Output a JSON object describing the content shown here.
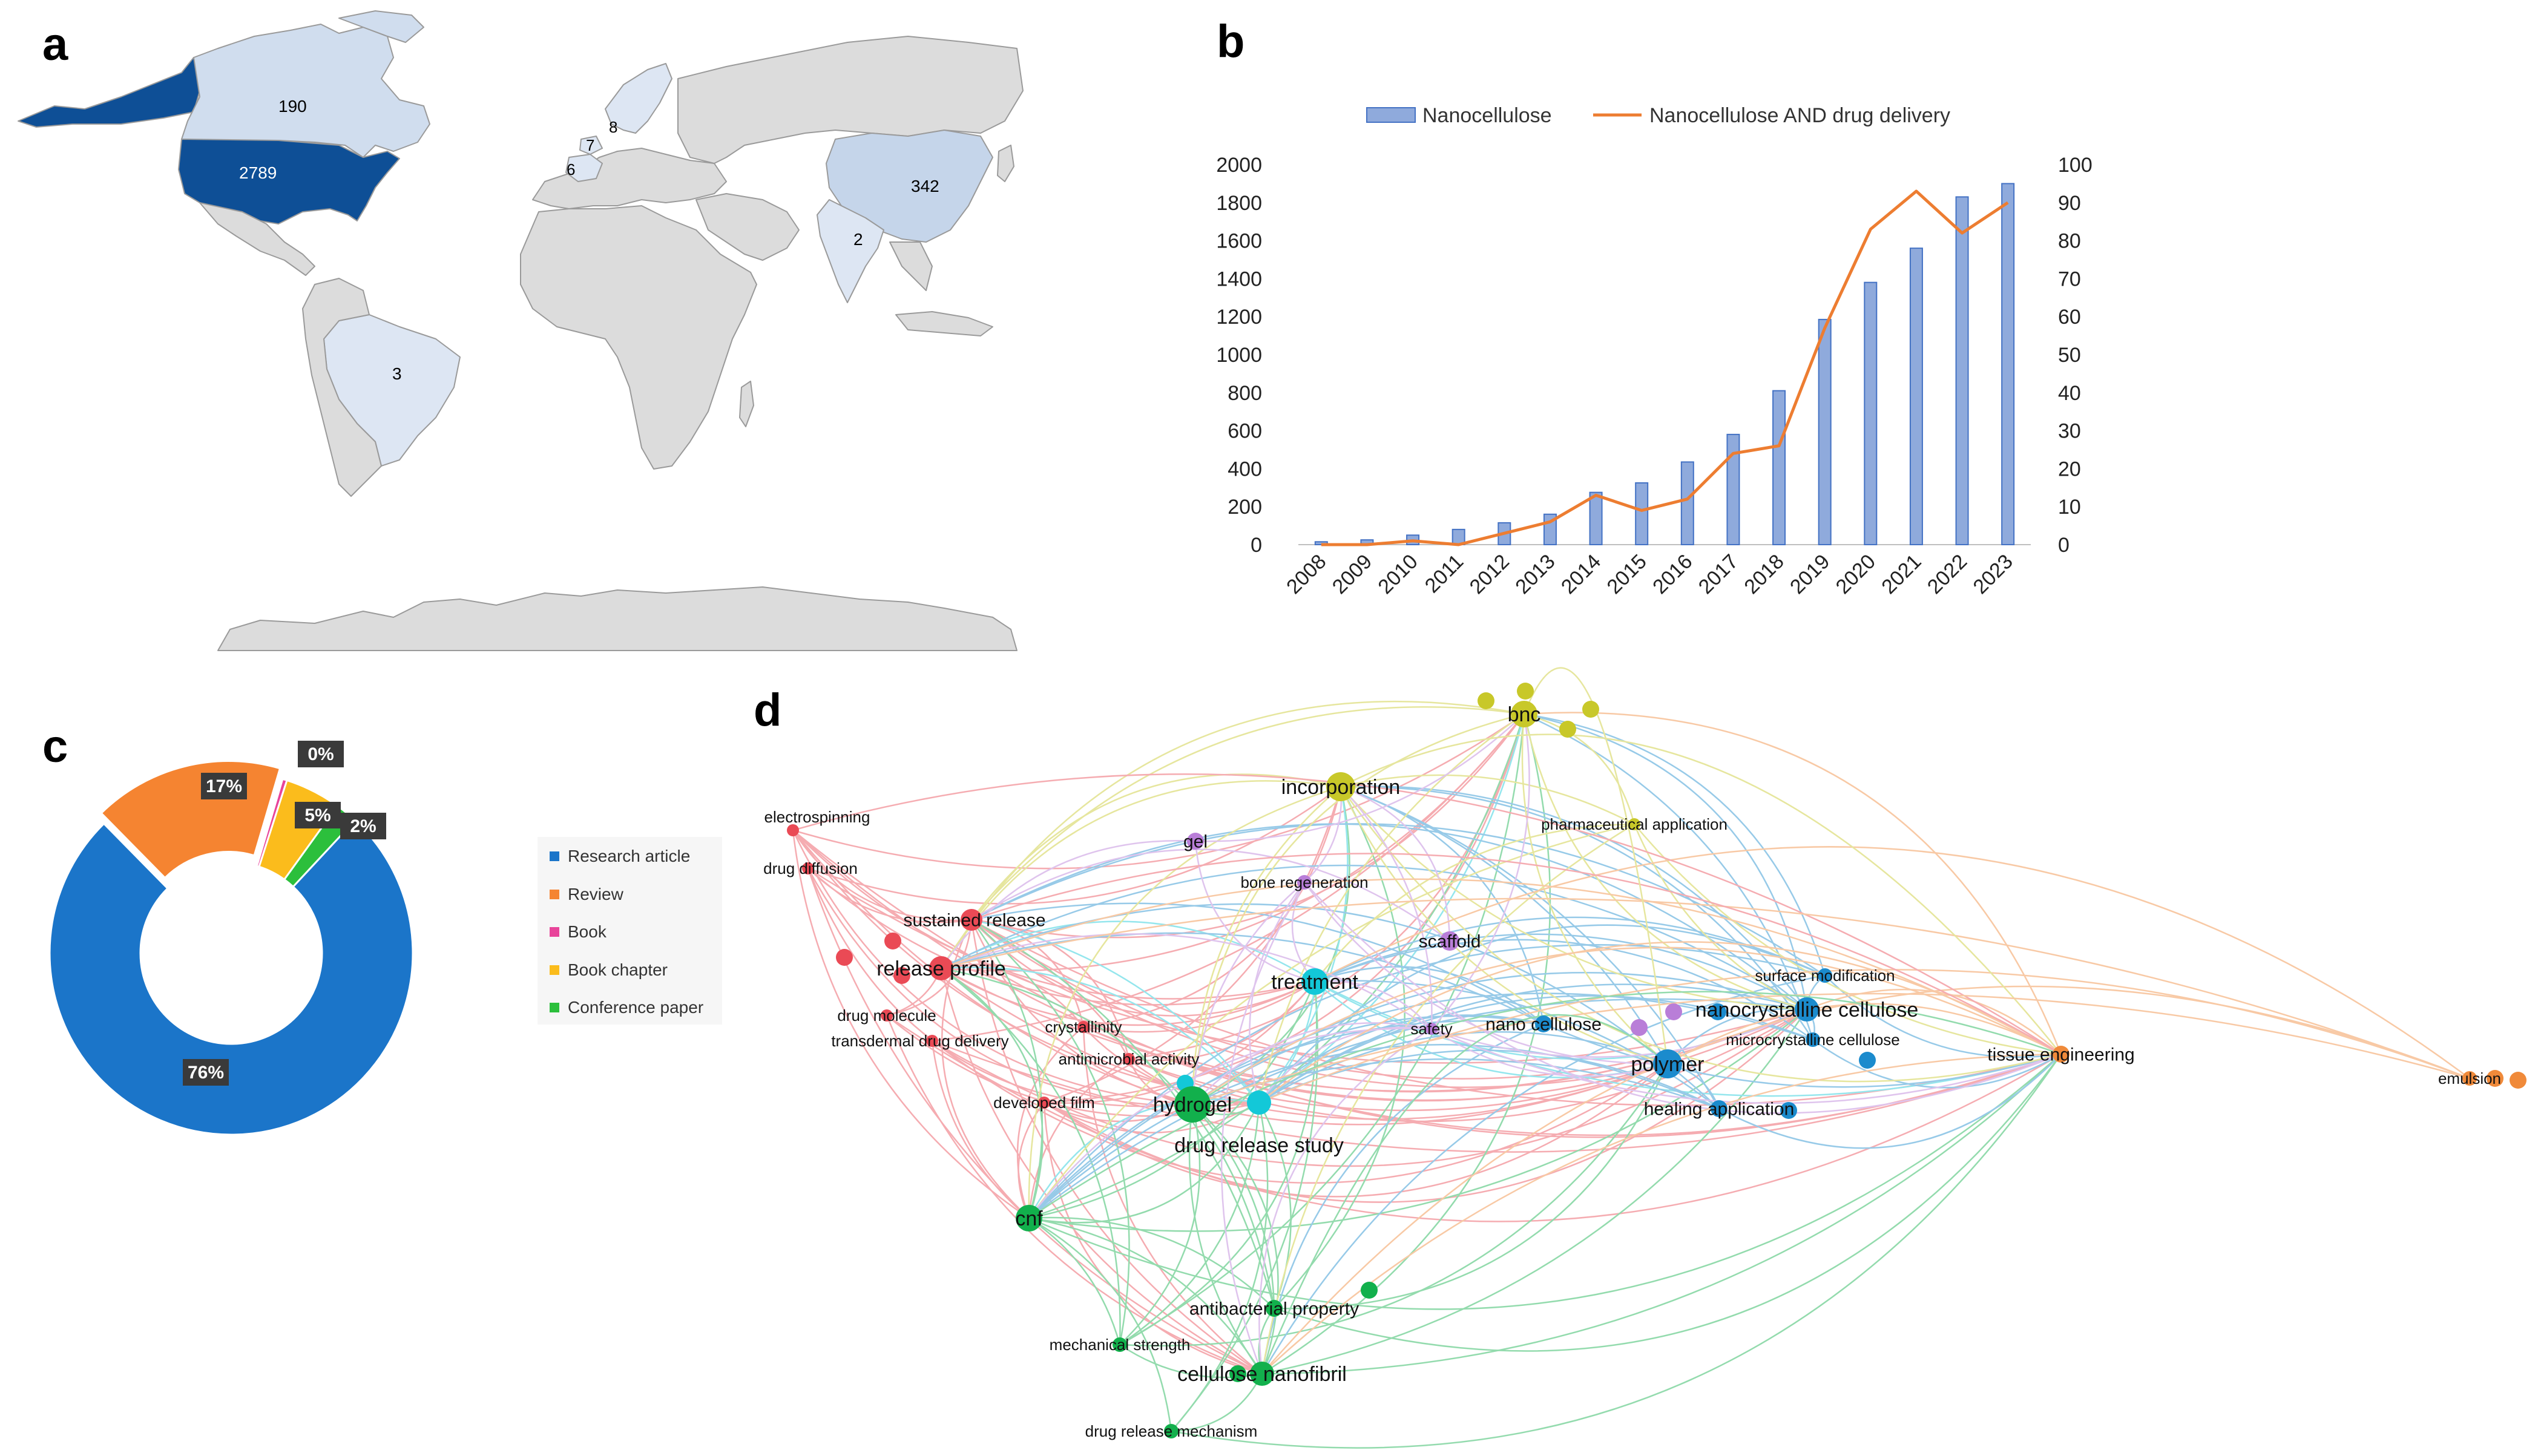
{
  "panels": {
    "a": "a",
    "b": "b",
    "c": "c",
    "d": "d"
  },
  "map": {
    "countries": [
      {
        "name": "USA",
        "value": "2789",
        "color": "#0e4f96"
      },
      {
        "name": "Canada",
        "value": "190",
        "color": "#d0ddee"
      },
      {
        "name": "China",
        "value": "342",
        "color": "#c5d5ea"
      },
      {
        "name": "India",
        "value": "2",
        "color": "#dde6f3"
      },
      {
        "name": "Brazil",
        "value": "3",
        "color": "#dde6f3"
      },
      {
        "name": "Norway/Sweden",
        "value": "8",
        "color": "#dde6f3"
      },
      {
        "name": "Denmark",
        "value": "7",
        "color": "#dde6f3"
      },
      {
        "name": "Germany",
        "value": "6",
        "color": "#dde6f3"
      }
    ]
  },
  "chart_data": [
    {
      "type": "bar",
      "title": "",
      "categories": [
        "2008",
        "2009",
        "2010",
        "2011",
        "2012",
        "2013",
        "2014",
        "2015",
        "2016",
        "2017",
        "2018",
        "2019",
        "2020",
        "2021",
        "2022",
        "2023"
      ],
      "series": [
        {
          "name": "Nanocellulose",
          "type": "bar",
          "axis": "left",
          "color": "#8faadc",
          "values": [
            15,
            25,
            50,
            80,
            115,
            160,
            275,
            325,
            435,
            580,
            810,
            1185,
            1380,
            1560,
            1830,
            1900
          ]
        },
        {
          "name": "Nanocellulose AND drug delivery",
          "type": "line",
          "axis": "right",
          "color": "#ed7d31",
          "values": [
            0,
            0,
            1,
            0,
            3,
            6,
            13,
            9,
            12,
            24,
            26,
            57,
            83,
            93,
            82,
            90
          ]
        }
      ],
      "y_left": {
        "lim": [
          0,
          2000
        ],
        "ticks": [
          "0",
          "200",
          "400",
          "600",
          "800",
          "1000",
          "1200",
          "1400",
          "1600",
          "1800",
          "2000"
        ]
      },
      "y_right": {
        "lim": [
          0,
          100
        ],
        "ticks": [
          "0",
          "10",
          "20",
          "30",
          "40",
          "50",
          "60",
          "70",
          "80",
          "90",
          "100"
        ]
      }
    },
    {
      "type": "pie",
      "donut": true,
      "labels": [
        "Research article",
        "Review",
        "Book",
        "Book chapter",
        "Conference paper"
      ],
      "values": [
        76,
        17,
        0.4,
        5,
        2
      ],
      "display": [
        "76%",
        "17%",
        "0%",
        "5%",
        "2%"
      ],
      "colors": [
        "#1b75c9",
        "#f58431",
        "#e8449a",
        "#fbbc1c",
        "#2cbf3c"
      ]
    },
    {
      "type": "network",
      "clusters": {
        "red": "#ea4a55",
        "green": "#12b04c",
        "cyan": "#13c8d8",
        "blue": "#1b8bcd",
        "yellow": "#c8c829",
        "purple": "#b97ed8",
        "orange": "#f08a3a"
      },
      "nodes": [
        {
          "label": "electrospinning",
          "cluster": "red",
          "size": 10
        },
        {
          "label": "drug diffusion",
          "cluster": "red",
          "size": 10
        },
        {
          "label": "sustained release",
          "cluster": "red",
          "size": 18
        },
        {
          "label": "release profile",
          "cluster": "red",
          "size": 20
        },
        {
          "label": "drug molecule",
          "cluster": "red",
          "size": 10
        },
        {
          "label": "transdermal drug delivery",
          "cluster": "red",
          "size": 10
        },
        {
          "label": "crystallinity",
          "cluster": "red",
          "size": 10
        },
        {
          "label": "antimicrobial activity",
          "cluster": "red",
          "size": 10
        },
        {
          "label": "developed film",
          "cluster": "red",
          "size": 10
        },
        {
          "label": "hydrogel",
          "cluster": "green",
          "size": 30
        },
        {
          "label": "cnf",
          "cluster": "green",
          "size": 22
        },
        {
          "label": "antibacterial property",
          "cluster": "green",
          "size": 14
        },
        {
          "label": "mechanical strength",
          "cluster": "green",
          "size": 12
        },
        {
          "label": "cellulose nanofibril",
          "cluster": "green",
          "size": 20
        },
        {
          "label": "drug release mechanism",
          "cluster": "green",
          "size": 12
        },
        {
          "label": "treatment",
          "cluster": "cyan",
          "size": 22
        },
        {
          "label": "drug release study",
          "cluster": "cyan",
          "size": 20
        },
        {
          "label": "nano cellulose",
          "cluster": "blue",
          "size": 14
        },
        {
          "label": "polymer",
          "cluster": "blue",
          "size": 24
        },
        {
          "label": "surface modification",
          "cluster": "blue",
          "size": 12
        },
        {
          "label": "nanocrystalline cellulose",
          "cluster": "blue",
          "size": 20
        },
        {
          "label": "microcrystalline cellulose",
          "cluster": "blue",
          "size": 12
        },
        {
          "label": "healing application",
          "cluster": "blue",
          "size": 14
        },
        {
          "label": "bnc",
          "cluster": "yellow",
          "size": 22
        },
        {
          "label": "incorporation",
          "cluster": "yellow",
          "size": 24
        },
        {
          "label": "pharmaceutical application",
          "cluster": "yellow",
          "size": 10
        },
        {
          "label": "gel",
          "cluster": "purple",
          "size": 14
        },
        {
          "label": "bone regeneration",
          "cluster": "purple",
          "size": 12
        },
        {
          "label": "scaffold",
          "cluster": "purple",
          "size": 16
        },
        {
          "label": "safety",
          "cluster": "purple",
          "size": 10
        },
        {
          "label": "tissue engineering",
          "cluster": "orange",
          "size": 14
        },
        {
          "label": "emulsion",
          "cluster": "orange",
          "size": 12
        }
      ]
    }
  ]
}
